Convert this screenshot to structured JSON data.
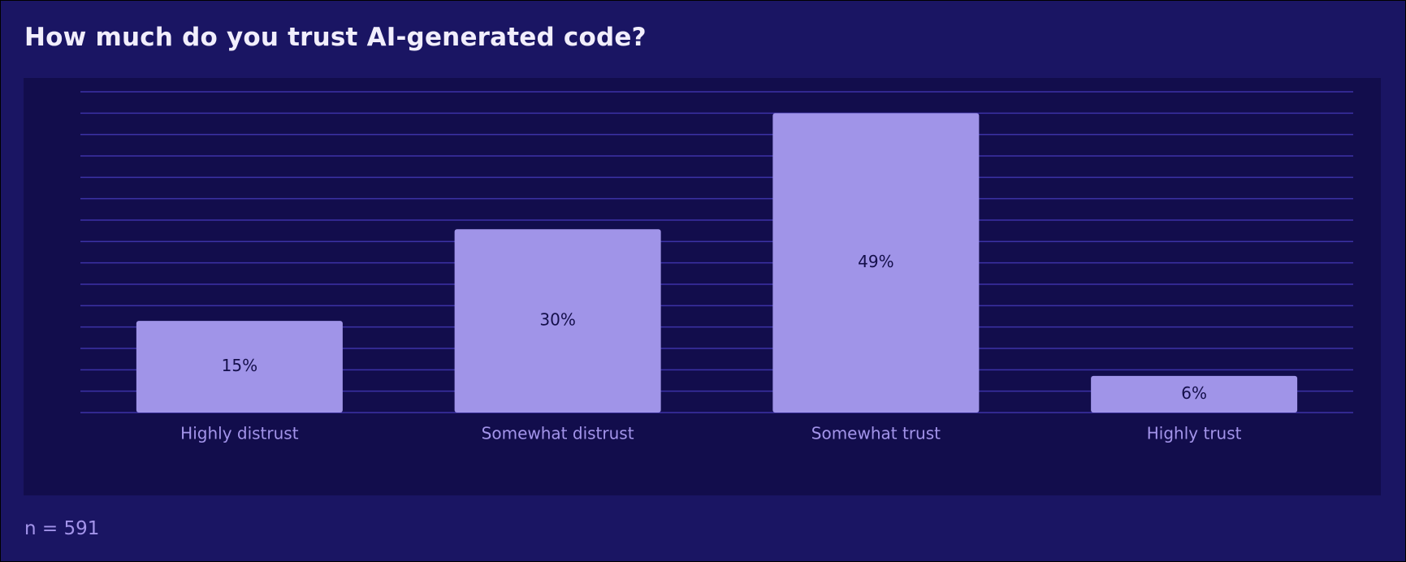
{
  "title": "How much do you trust AI-generated code?",
  "footnote": "n = 591",
  "colors": {
    "page_background": "#1a1563",
    "plot_background": "#120d4c",
    "gridline": "#3c32a6",
    "bar": "#a094e8",
    "bar_label": "#140f4a",
    "tick_label": "#a394ea",
    "title": "#f1eefc"
  },
  "chart_data": {
    "type": "bar",
    "title": "How much do you trust AI-generated code?",
    "xlabel": "",
    "ylabel": "",
    "categories": [
      "Highly distrust",
      "Somewhat distrust",
      "Somewhat trust",
      "Highly trust"
    ],
    "values": [
      15,
      30,
      49,
      6
    ],
    "value_labels": [
      "15%",
      "30%",
      "49%",
      "6%"
    ],
    "ylim": [
      0,
      52.5
    ],
    "grid": true,
    "legend": "none"
  }
}
